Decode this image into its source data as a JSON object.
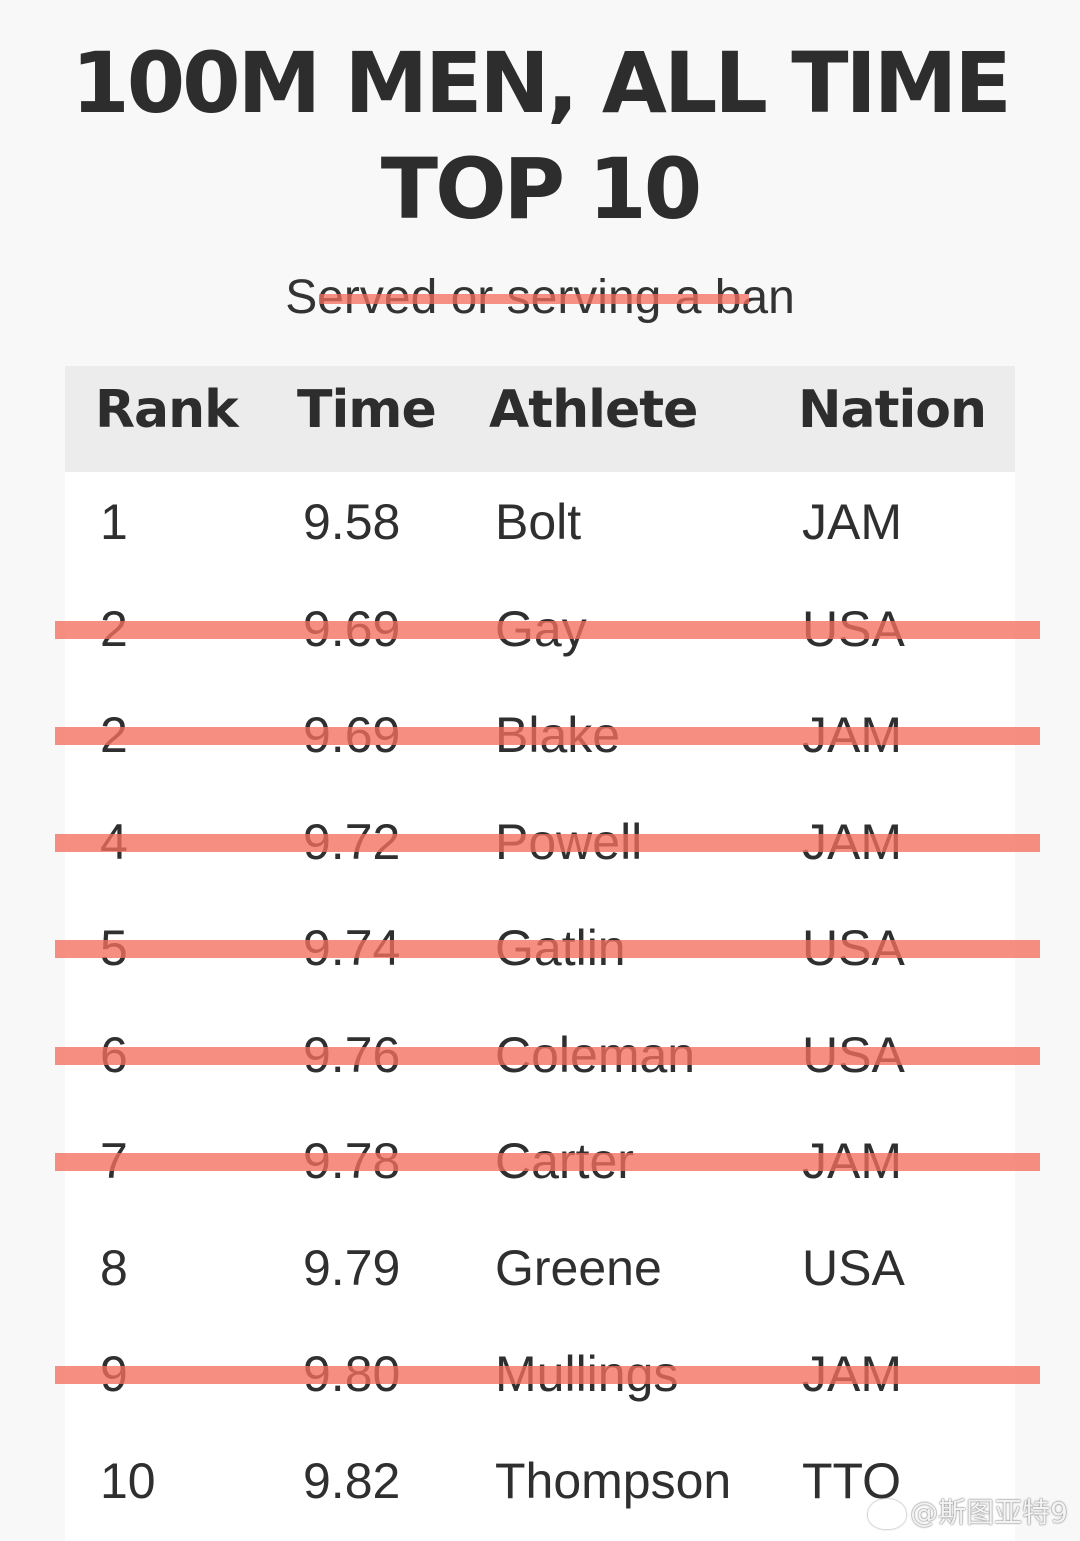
{
  "title": {
    "line1": "100M MEN, ALL TIME",
    "line2": "TOP 10"
  },
  "subtitle": "Served or serving a ban",
  "table": {
    "headers": {
      "rank": "Rank",
      "time": "Time",
      "athlete": "Athlete",
      "nation": "Nation"
    },
    "rows": [
      {
        "rank": "1",
        "time": "9.58",
        "athlete": "Bolt",
        "nation": "JAM",
        "struck": false
      },
      {
        "rank": "2",
        "time": "9.69",
        "athlete": "Gay",
        "nation": "USA",
        "struck": true
      },
      {
        "rank": "2",
        "time": "9.69",
        "athlete": "Blake",
        "nation": "JAM",
        "struck": true
      },
      {
        "rank": "4",
        "time": "9.72",
        "athlete": "Powell",
        "nation": "JAM",
        "struck": true
      },
      {
        "rank": "5",
        "time": "9.74",
        "athlete": "Gatlin",
        "nation": "USA",
        "struck": true
      },
      {
        "rank": "6",
        "time": "9.76",
        "athlete": "Coleman",
        "nation": "USA",
        "struck": true
      },
      {
        "rank": "7",
        "time": "9.78",
        "athlete": "Carter",
        "nation": "JAM",
        "struck": true
      },
      {
        "rank": "8",
        "time": "9.79",
        "athlete": "Greene",
        "nation": "USA",
        "struck": false
      },
      {
        "rank": "9",
        "time": "9.80",
        "athlete": "Mullings",
        "nation": "JAM",
        "struck": true
      },
      {
        "rank": "10",
        "time": "9.82",
        "athlete": "Thompson",
        "nation": "TTO",
        "struck": false
      }
    ]
  },
  "watermark": "@斯图亚特9",
  "colors": {
    "strike": "#f56e5f",
    "header_bg": "#ececec",
    "page_bg": "#f8f8f8"
  }
}
